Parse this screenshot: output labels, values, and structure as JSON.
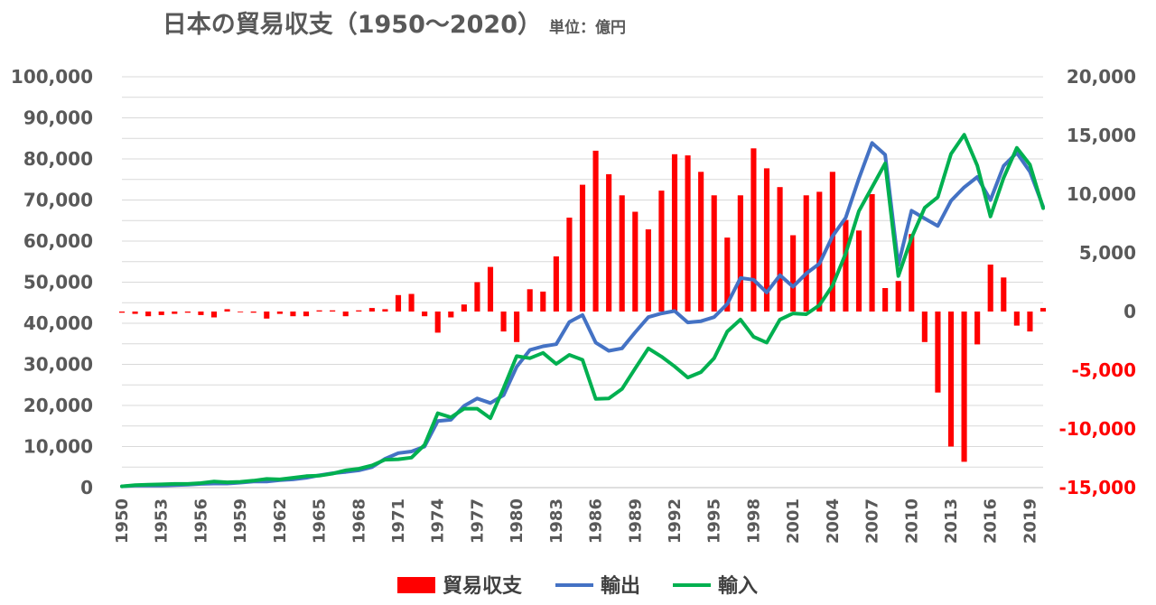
{
  "chart_data": {
    "type": "bar+line",
    "title": "日本の貿易収支（1950～2020）",
    "unit_label": "単位：億円",
    "left_axis": {
      "min": 0,
      "max": 100000,
      "step": 10000,
      "tick_labels": [
        "0",
        "10,000",
        "20,000",
        "30,000",
        "40,000",
        "50,000",
        "60,000",
        "70,000",
        "80,000",
        "90,000",
        "100,000"
      ]
    },
    "right_axis": {
      "min": -15000,
      "max": 20000,
      "step": 5000,
      "tick_labels": [
        "-15,000",
        "-10,000",
        "-5,000",
        "0",
        "5,000",
        "10,000",
        "15,000",
        "20,000"
      ],
      "negative_color": "#ff0000",
      "positive_color": "#595959"
    },
    "x": [
      1950,
      1951,
      1952,
      1953,
      1954,
      1955,
      1956,
      1957,
      1958,
      1959,
      1960,
      1961,
      1962,
      1963,
      1964,
      1965,
      1966,
      1967,
      1968,
      1969,
      1970,
      1971,
      1972,
      1973,
      1974,
      1975,
      1976,
      1977,
      1978,
      1979,
      1980,
      1981,
      1982,
      1983,
      1984,
      1985,
      1986,
      1987,
      1988,
      1989,
      1990,
      1991,
      1992,
      1993,
      1994,
      1995,
      1996,
      1997,
      1998,
      1999,
      2000,
      2001,
      2002,
      2003,
      2004,
      2005,
      2006,
      2007,
      2008,
      2009,
      2010,
      2011,
      2012,
      2013,
      2014,
      2015,
      2016,
      2017,
      2018,
      2019,
      2020
    ],
    "x_tick_labels": [
      "1950",
      "1953",
      "1956",
      "1959",
      "1962",
      "1965",
      "1968",
      "1971",
      "1974",
      "1977",
      "1980",
      "1983",
      "1986",
      "1989",
      "1992",
      "1995",
      "1998",
      "2001",
      "2004",
      "2007",
      "2010",
      "2013",
      "2016",
      "2019"
    ],
    "grid": true,
    "legend_position": "bottom",
    "series": [
      {
        "name": "貿易収支",
        "type": "bar",
        "axis": "right",
        "color": "#ff0000",
        "values": [
          -100,
          -200,
          -400,
          -300,
          -200,
          -100,
          -300,
          -500,
          200,
          0,
          -100,
          -600,
          -200,
          -400,
          -400,
          100,
          100,
          -400,
          100,
          300,
          200,
          1400,
          1500,
          -400,
          -1800,
          -500,
          600,
          2500,
          3800,
          -1700,
          -2600,
          1900,
          1700,
          4700,
          8000,
          10800,
          13700,
          11700,
          9900,
          8500,
          7000,
          10300,
          13400,
          13300,
          11900,
          9900,
          6300,
          9900,
          13900,
          12200,
          10600,
          6500,
          9900,
          10200,
          11900,
          7800,
          6900,
          10000,
          2000,
          2600,
          6600,
          -2600,
          -6900,
          -11500,
          -12800,
          -2800,
          4000,
          2900,
          -1200,
          -1700,
          300
        ]
      },
      {
        "name": "輸出",
        "type": "line",
        "axis": "left",
        "color": "#4472c4",
        "values": [
          300,
          500,
          500,
          500,
          600,
          700,
          900,
          1000,
          1000,
          1200,
          1500,
          1500,
          1800,
          2000,
          2400,
          3000,
          3500,
          3800,
          4200,
          5000,
          7000,
          8400,
          8800,
          10000,
          16200,
          16500,
          19900,
          21700,
          20600,
          22500,
          29400,
          33500,
          34400,
          34900,
          40300,
          42000,
          35300,
          33300,
          33900,
          37800,
          41500,
          42400,
          43000,
          40200,
          40500,
          41500,
          44700,
          51000,
          50600,
          47500,
          51700,
          48900,
          52100,
          54500,
          61200,
          65700,
          75200,
          83900,
          81000,
          54200,
          67400,
          65500,
          63700,
          69800,
          73100,
          75600,
          70000,
          78300,
          81500,
          76900,
          68400
        ]
      },
      {
        "name": "輸入",
        "type": "line",
        "axis": "left",
        "color": "#00b050",
        "values": [
          300,
          600,
          700,
          800,
          900,
          900,
          1100,
          1500,
          1300,
          1400,
          1700,
          2100,
          2000,
          2400,
          2800,
          2900,
          3400,
          4200,
          4600,
          5400,
          6800,
          6900,
          7300,
          10400,
          18100,
          17100,
          19200,
          19200,
          16900,
          24200,
          32000,
          31500,
          32800,
          30100,
          32300,
          31100,
          21600,
          21700,
          24000,
          29000,
          33900,
          31900,
          29500,
          26800,
          28100,
          31500,
          38000,
          40900,
          36700,
          35300,
          40900,
          42400,
          42200,
          44400,
          49200,
          57000,
          67300,
          73100,
          78900,
          51500,
          60800,
          68100,
          70700,
          81200,
          85900,
          78400,
          66000,
          75400,
          82700,
          78600,
          68000
        ]
      }
    ]
  }
}
